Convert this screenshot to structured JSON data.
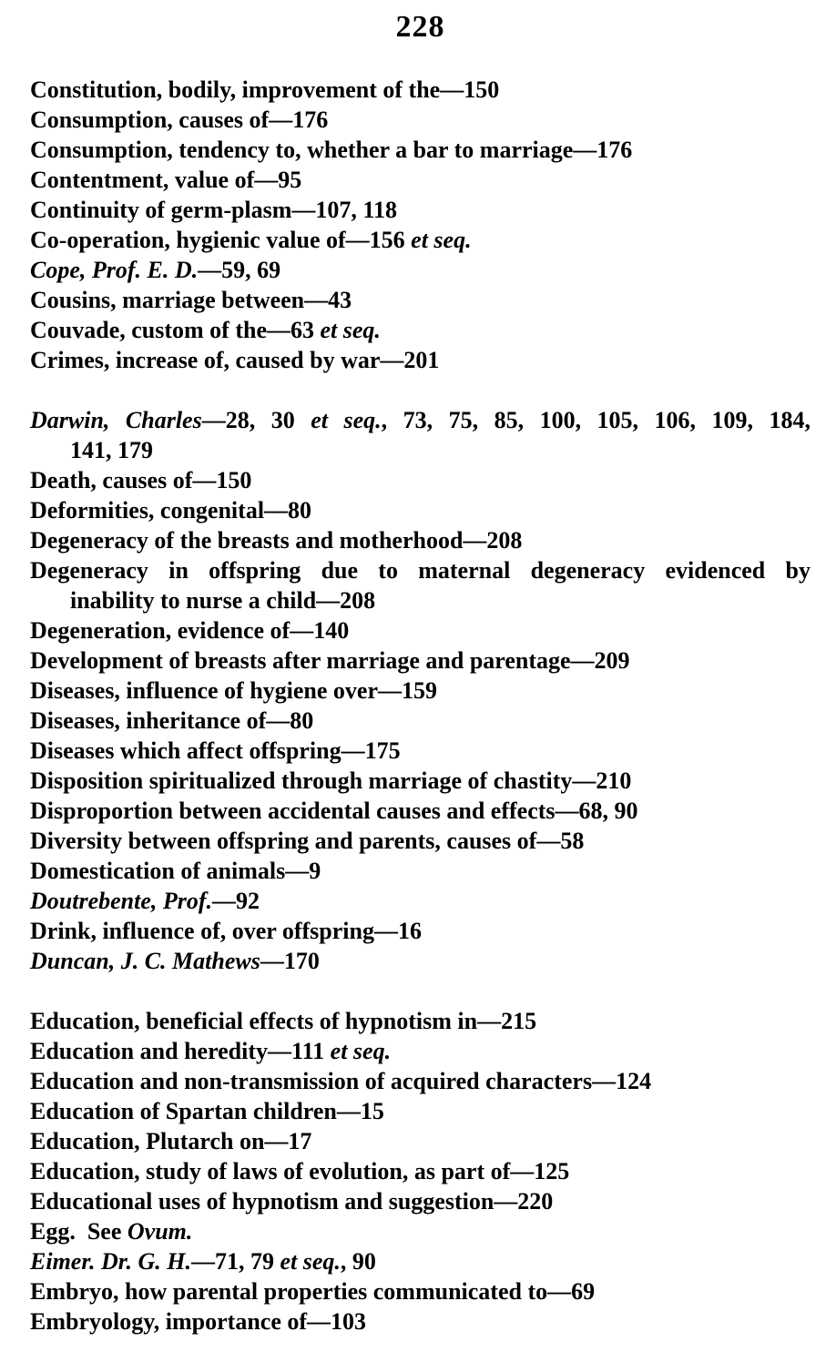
{
  "page": {
    "number": "228"
  },
  "index": {
    "lines": [
      {
        "name": "constitution",
        "segments": [
          {
            "t": "Constitution, bodily, improvement of the—150"
          }
        ]
      },
      {
        "name": "consumption-causes",
        "segments": [
          {
            "t": "Consumption, causes of—176"
          }
        ]
      },
      {
        "name": "consumption-tendency",
        "segments": [
          {
            "t": "Consumption, tendency to, whether a bar to marriage—176"
          }
        ]
      },
      {
        "name": "contentment",
        "segments": [
          {
            "t": "Contentment, value of—95"
          }
        ]
      },
      {
        "name": "continuity",
        "segments": [
          {
            "t": "Continuity of germ-plasm—107, 118"
          }
        ]
      },
      {
        "name": "co-operation",
        "segments": [
          {
            "t": "Co-operation, hygienic value of—156 "
          },
          {
            "t": "et seq.",
            "i": true
          }
        ]
      },
      {
        "name": "cope",
        "segments": [
          {
            "t": "Cope, Prof. E. D.",
            "i": true
          },
          {
            "t": "—59, 69"
          }
        ]
      },
      {
        "name": "cousins",
        "segments": [
          {
            "t": "Cousins, marriage between—43"
          }
        ]
      },
      {
        "name": "couvade",
        "segments": [
          {
            "t": "Couvade, custom of the—63 "
          },
          {
            "t": "et seq.",
            "i": true
          }
        ]
      },
      {
        "name": "crimes",
        "segments": [
          {
            "t": "Crimes, increase of, caused by war—201"
          }
        ]
      },
      {
        "name": "darwin",
        "gap": true,
        "justify": true,
        "segments": [
          {
            "t": "Darwin, Charles",
            "i": true
          },
          {
            "t": "—28, 30 "
          },
          {
            "t": "et seq.",
            "i": true
          },
          {
            "t": ", 73, 75, 85, 100, 105, 106, 109, 184,"
          }
        ]
      },
      {
        "name": "darwin-continuation",
        "indent": true,
        "segments": [
          {
            "t": "141, 179"
          }
        ]
      },
      {
        "name": "death",
        "segments": [
          {
            "t": "Death, causes of—150"
          }
        ]
      },
      {
        "name": "deformities",
        "segments": [
          {
            "t": "Deformities, congenital—80"
          }
        ]
      },
      {
        "name": "degeneracy-breasts",
        "segments": [
          {
            "t": "Degeneracy of the breasts and motherhood—208"
          }
        ]
      },
      {
        "name": "degeneracy-offspring",
        "justify": true,
        "segments": [
          {
            "t": "Degeneracy in offspring due to maternal degeneracy evidenced by"
          }
        ]
      },
      {
        "name": "degeneracy-offspring-continuation",
        "indent": true,
        "segments": [
          {
            "t": "inability to nurse a child—208"
          }
        ]
      },
      {
        "name": "degeneration",
        "segments": [
          {
            "t": "Degeneration, evidence of—140"
          }
        ]
      },
      {
        "name": "development",
        "segments": [
          {
            "t": "Development of breasts after marriage and parentage—209"
          }
        ]
      },
      {
        "name": "diseases-hygiene",
        "segments": [
          {
            "t": "Diseases, influence of hygiene over—159"
          }
        ]
      },
      {
        "name": "diseases-inheritance",
        "segments": [
          {
            "t": "Diseases, inheritance of—80"
          }
        ]
      },
      {
        "name": "diseases-offspring",
        "segments": [
          {
            "t": "Diseases which affect offspring—175"
          }
        ]
      },
      {
        "name": "disposition",
        "segments": [
          {
            "t": "Disposition spiritualized through marriage of chastity—210"
          }
        ]
      },
      {
        "name": "disproportion",
        "segments": [
          {
            "t": "Disproportion between accidental causes and effects—68, 90"
          }
        ]
      },
      {
        "name": "diversity",
        "segments": [
          {
            "t": "Diversity between offspring and parents, causes of—58"
          }
        ]
      },
      {
        "name": "domestication",
        "segments": [
          {
            "t": "Domestication of animals—9"
          }
        ]
      },
      {
        "name": "doutrebente",
        "segments": [
          {
            "t": "Doutrebente, Prof.",
            "i": true
          },
          {
            "t": "—92"
          }
        ]
      },
      {
        "name": "drink",
        "segments": [
          {
            "t": "Drink, influence of, over offspring—16"
          }
        ]
      },
      {
        "name": "duncan",
        "segments": [
          {
            "t": "Duncan, J. C. Mathews",
            "i": true
          },
          {
            "t": "—170"
          }
        ]
      },
      {
        "name": "education-hypnotism",
        "gap": true,
        "segments": [
          {
            "t": "Education, beneficial effects of hypnotism in—215"
          }
        ]
      },
      {
        "name": "education-heredity",
        "segments": [
          {
            "t": "Education and heredity—111 "
          },
          {
            "t": "et seq.",
            "i": true
          }
        ]
      },
      {
        "name": "education-non-transmission",
        "segments": [
          {
            "t": "Education and non-transmission of acquired characters—124"
          }
        ]
      },
      {
        "name": "education-spartan",
        "segments": [
          {
            "t": "Education of Spartan children—15"
          }
        ]
      },
      {
        "name": "education-plutarch",
        "segments": [
          {
            "t": "Education, Plutarch on—17"
          }
        ]
      },
      {
        "name": "education-evolution",
        "segments": [
          {
            "t": "Education, study of laws of evolution, as part of—125"
          }
        ]
      },
      {
        "name": "educational-uses",
        "segments": [
          {
            "t": "Educational uses of hypnotism and suggestion—220"
          }
        ]
      },
      {
        "name": "egg",
        "segments": [
          {
            "t": "Egg.  See "
          },
          {
            "t": "Ovum.",
            "i": true
          }
        ]
      },
      {
        "name": "eimer",
        "segments": [
          {
            "t": "Eimer. Dr. G. H.",
            "i": true
          },
          {
            "t": "—71, 79 "
          },
          {
            "t": "et seq.",
            "i": true
          },
          {
            "t": ", 90"
          }
        ]
      },
      {
        "name": "embryo",
        "segments": [
          {
            "t": "Embryo, how parental properties communicated to—69"
          }
        ]
      },
      {
        "name": "embryology",
        "segments": [
          {
            "t": "Embryology, importance of—103"
          }
        ]
      }
    ]
  }
}
